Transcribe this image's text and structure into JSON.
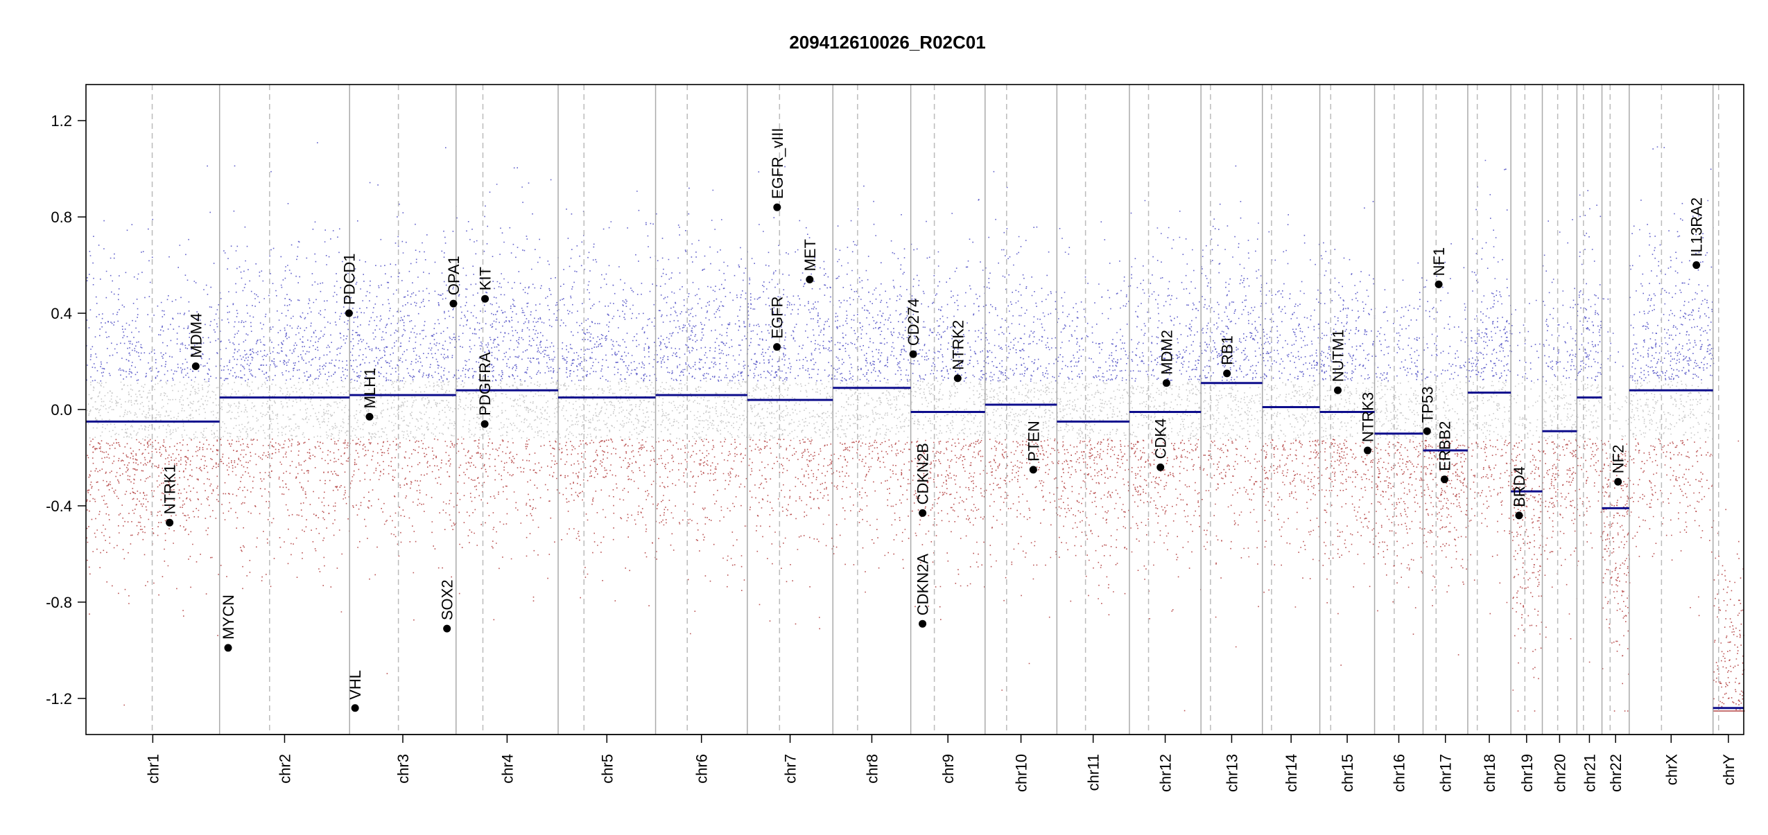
{
  "chart_data": {
    "type": "scatter",
    "title": "209412610026_R02C01",
    "xlabel": "",
    "ylabel": "",
    "ylim": [
      -1.35,
      1.35
    ],
    "yticks": [
      -1.2,
      -0.8,
      -0.4,
      0.0,
      0.4,
      0.8,
      1.2
    ],
    "grid": false,
    "chromosomes": [
      {
        "name": "chr1",
        "start": 0.0,
        "end": 248.9
      },
      {
        "name": "chr2",
        "start": 248.9,
        "end": 491.1
      },
      {
        "name": "chr3",
        "start": 491.1,
        "end": 689.4
      },
      {
        "name": "chr4",
        "start": 689.4,
        "end": 879.6
      },
      {
        "name": "chr5",
        "start": 879.6,
        "end": 1061.1
      },
      {
        "name": "chr6",
        "start": 1061.1,
        "end": 1232.0
      },
      {
        "name": "chr7",
        "start": 1232.0,
        "end": 1391.4
      },
      {
        "name": "chr8",
        "start": 1391.4,
        "end": 1536.5
      },
      {
        "name": "chr9",
        "start": 1536.5,
        "end": 1674.9
      },
      {
        "name": "chr10",
        "start": 1674.9,
        "end": 1808.7
      },
      {
        "name": "chr11",
        "start": 1808.7,
        "end": 1943.8
      },
      {
        "name": "chr12",
        "start": 1943.8,
        "end": 2077.1
      },
      {
        "name": "chr13",
        "start": 2077.1,
        "end": 2191.5
      },
      {
        "name": "chr14",
        "start": 2191.5,
        "end": 2298.5
      },
      {
        "name": "chr15",
        "start": 2298.5,
        "end": 2400.5
      },
      {
        "name": "chr16",
        "start": 2400.5,
        "end": 2490.8
      },
      {
        "name": "chr17",
        "start": 2490.8,
        "end": 2574.1
      },
      {
        "name": "chr18",
        "start": 2574.1,
        "end": 2654.4
      },
      {
        "name": "chr19",
        "start": 2654.4,
        "end": 2713.0
      },
      {
        "name": "chr20",
        "start": 2713.0,
        "end": 2777.4
      },
      {
        "name": "chr21",
        "start": 2777.4,
        "end": 2824.1
      },
      {
        "name": "chr22",
        "start": 2824.1,
        "end": 2874.9
      },
      {
        "name": "chrX",
        "start": 2874.9,
        "end": 3031.0
      },
      {
        "name": "chrY",
        "start": 3031.0,
        "end": 3088.2
      }
    ],
    "centromeres": [
      123.4,
      342.0,
      582.0,
      739.4,
      927.7,
      1120.1,
      1292.0,
      1437.4,
      1580.4,
      1715.0,
      1862.0,
      1979.4,
      2094.8,
      2208.5,
      2318.8,
      2437.1,
      2515.1,
      2591.8,
      2680.5,
      2741.6,
      2789.6,
      2839.3,
      2935.0,
      3041.4
    ],
    "segments": [
      {
        "start": 0.0,
        "end": 248.9,
        "value": -0.05
      },
      {
        "start": 248.9,
        "end": 491.1,
        "value": 0.05
      },
      {
        "start": 491.1,
        "end": 689.4,
        "value": 0.06
      },
      {
        "start": 689.4,
        "end": 879.6,
        "value": 0.08
      },
      {
        "start": 879.6,
        "end": 1061.1,
        "value": 0.05
      },
      {
        "start": 1061.1,
        "end": 1232.0,
        "value": 0.06
      },
      {
        "start": 1232.0,
        "end": 1391.4,
        "value": 0.04
      },
      {
        "start": 1391.4,
        "end": 1536.5,
        "value": 0.09
      },
      {
        "start": 1536.5,
        "end": 1674.9,
        "value": -0.01
      },
      {
        "start": 1674.9,
        "end": 1808.7,
        "value": 0.02
      },
      {
        "start": 1808.7,
        "end": 1943.8,
        "value": -0.05
      },
      {
        "start": 1943.8,
        "end": 2077.1,
        "value": -0.01
      },
      {
        "start": 2077.1,
        "end": 2191.5,
        "value": 0.11
      },
      {
        "start": 2191.5,
        "end": 2298.5,
        "value": 0.01
      },
      {
        "start": 2298.5,
        "end": 2400.5,
        "value": -0.01
      },
      {
        "start": 2400.5,
        "end": 2490.8,
        "value": -0.1
      },
      {
        "start": 2490.8,
        "end": 2574.1,
        "value": -0.17
      },
      {
        "start": 2574.1,
        "end": 2654.4,
        "value": 0.07
      },
      {
        "start": 2654.4,
        "end": 2713.0,
        "value": -0.34
      },
      {
        "start": 2713.0,
        "end": 2777.4,
        "value": -0.09
      },
      {
        "start": 2777.4,
        "end": 2824.1,
        "value": 0.05
      },
      {
        "start": 2824.1,
        "end": 2874.9,
        "value": -0.41
      },
      {
        "start": 2874.9,
        "end": 3031.0,
        "value": 0.08
      },
      {
        "start": 3031.0,
        "end": 3088.2,
        "value": -1.24
      }
    ],
    "genes": [
      {
        "name": "NTRK1",
        "x": 155.8,
        "y": -0.47
      },
      {
        "name": "MDM4",
        "x": 204.5,
        "y": 0.18
      },
      {
        "name": "MYCN",
        "x": 264.8,
        "y": -0.99
      },
      {
        "name": "PDCD1",
        "x": 490.0,
        "y": 0.4
      },
      {
        "name": "VHL",
        "x": 501.3,
        "y": -1.24
      },
      {
        "name": "MLH1",
        "x": 528.2,
        "y": -0.03
      },
      {
        "name": "SOX2",
        "x": 672.5,
        "y": -0.91
      },
      {
        "name": "OPA1",
        "x": 684.5,
        "y": 0.44
      },
      {
        "name": "KIT",
        "x": 743.4,
        "y": 0.46
      },
      {
        "name": "PDGFRA",
        "x": 742.8,
        "y": -0.06
      },
      {
        "name": "EGFR",
        "x": 1287.2,
        "y": 0.26
      },
      {
        "name": "EGFR_vIII",
        "x": 1287.5,
        "y": 0.84
      },
      {
        "name": "MET",
        "x": 1348.2,
        "y": 0.54
      },
      {
        "name": "CD274",
        "x": 1541.0,
        "y": 0.23
      },
      {
        "name": "CDKN2A",
        "x": 1558.4,
        "y": -0.89
      },
      {
        "name": "CDKN2B",
        "x": 1558.5,
        "y": -0.43
      },
      {
        "name": "NTRK2",
        "x": 1623.9,
        "y": 0.13
      },
      {
        "name": "PTEN",
        "x": 1764.7,
        "y": -0.25
      },
      {
        "name": "CDK4",
        "x": 2001.6,
        "y": -0.24
      },
      {
        "name": "MDM2",
        "x": 2012.8,
        "y": 0.11
      },
      {
        "name": "RB1",
        "x": 2125.5,
        "y": 0.15
      },
      {
        "name": "NUTM1",
        "x": 2332.0,
        "y": 0.08
      },
      {
        "name": "NTRK3",
        "x": 2387.5,
        "y": -0.17
      },
      {
        "name": "TP53",
        "x": 2498.3,
        "y": -0.09
      },
      {
        "name": "NF1",
        "x": 2520.0,
        "y": 0.52
      },
      {
        "name": "ERBB2",
        "x": 2530.8,
        "y": -0.29
      },
      {
        "name": "BRD4",
        "x": 2669.7,
        "y": -0.44
      },
      {
        "name": "NF2",
        "x": 2854.0,
        "y": -0.3
      },
      {
        "name": "IL13RA2",
        "x": 3000.0,
        "y": 0.6
      }
    ],
    "point_colors": {
      "gain": "#2b2bb8",
      "loss": "#a31a1a",
      "neutral": "#bbbbbb"
    },
    "segment_color": "#0d0d8c",
    "gene_color": "#000000"
  }
}
